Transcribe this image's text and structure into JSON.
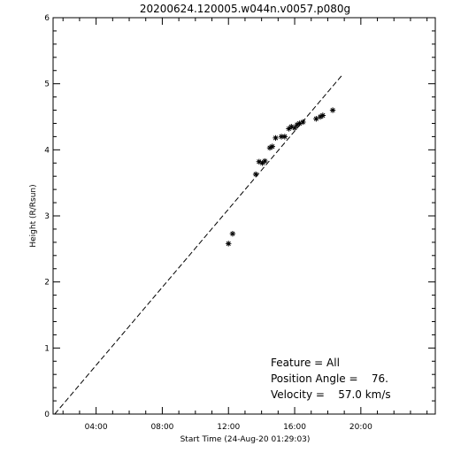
{
  "chart_data": {
    "type": "scatter",
    "title": "20200624.120005.w044n.v0057.p080g",
    "xlabel": "Start Time (24-Aug-20 01:29:03)",
    "ylabel": "Height (R/Rsun)",
    "xlim_hours": [
      1.4,
      24.5
    ],
    "ylim": [
      0,
      6
    ],
    "x_ticks": [
      {
        "hour": 4,
        "label": "04:00"
      },
      {
        "hour": 8,
        "label": "08:00"
      },
      {
        "hour": 12,
        "label": "12:00"
      },
      {
        "hour": 16,
        "label": "16:00"
      },
      {
        "hour": 20,
        "label": "20:00"
      }
    ],
    "y_ticks": [
      0,
      1,
      2,
      3,
      4,
      5,
      6
    ],
    "x_minor_step_hours": 1,
    "y_minor_step": 0.2,
    "series": [
      {
        "marker": "asterisk",
        "points": [
          [
            12.0,
            2.58
          ],
          [
            12.25,
            2.73
          ],
          [
            13.65,
            3.63
          ],
          [
            13.85,
            3.82
          ],
          [
            14.05,
            3.8
          ],
          [
            14.2,
            3.83
          ],
          [
            14.5,
            4.03
          ],
          [
            14.65,
            4.05
          ],
          [
            14.85,
            4.18
          ],
          [
            15.2,
            4.2
          ],
          [
            15.4,
            4.2
          ],
          [
            15.65,
            4.32
          ],
          [
            15.8,
            4.35
          ],
          [
            16.0,
            4.33
          ],
          [
            16.15,
            4.38
          ],
          [
            16.3,
            4.4
          ],
          [
            16.5,
            4.42
          ],
          [
            17.3,
            4.47
          ],
          [
            17.55,
            4.5
          ],
          [
            17.7,
            4.52
          ],
          [
            18.3,
            4.6
          ]
        ]
      }
    ],
    "fit_line": {
      "style": "dashed",
      "from": [
        1.5,
        0.0
      ],
      "to": [
        18.9,
        5.14
      ]
    },
    "annotations": {
      "feature": "Feature = All",
      "position_angle": "Position Angle =    76.",
      "velocity": "Velocity =    57.0 km/s"
    }
  }
}
